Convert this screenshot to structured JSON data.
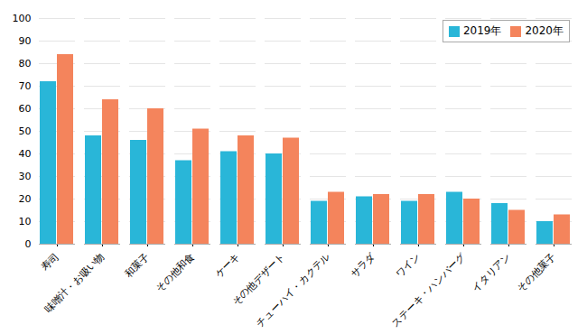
{
  "chart_data": {
    "type": "bar",
    "categories": [
      "寿司",
      "味噌汁・お吸い物",
      "和菓子",
      "その他和食",
      "ケーキ",
      "その他デザート",
      "チューハイ・カクテル",
      "サラダ",
      "ワイン",
      "ステーキ・ハンバーグ",
      "イタリアン",
      "その他菓子"
    ],
    "series": [
      {
        "name": "2019年",
        "color": "#29B6D8",
        "values": [
          72,
          48,
          46,
          37,
          41,
          40,
          19,
          21,
          19,
          23,
          18,
          10
        ]
      },
      {
        "name": "2020年",
        "color": "#F4845C",
        "values": [
          84,
          64,
          60,
          51,
          48,
          47,
          23,
          22,
          22,
          20,
          15,
          13
        ]
      }
    ],
    "ylim": [
      0,
      100
    ],
    "yticks": [
      0,
      10,
      20,
      30,
      40,
      50,
      60,
      70,
      80,
      90,
      100
    ],
    "grid": true,
    "legend": "upper right"
  }
}
